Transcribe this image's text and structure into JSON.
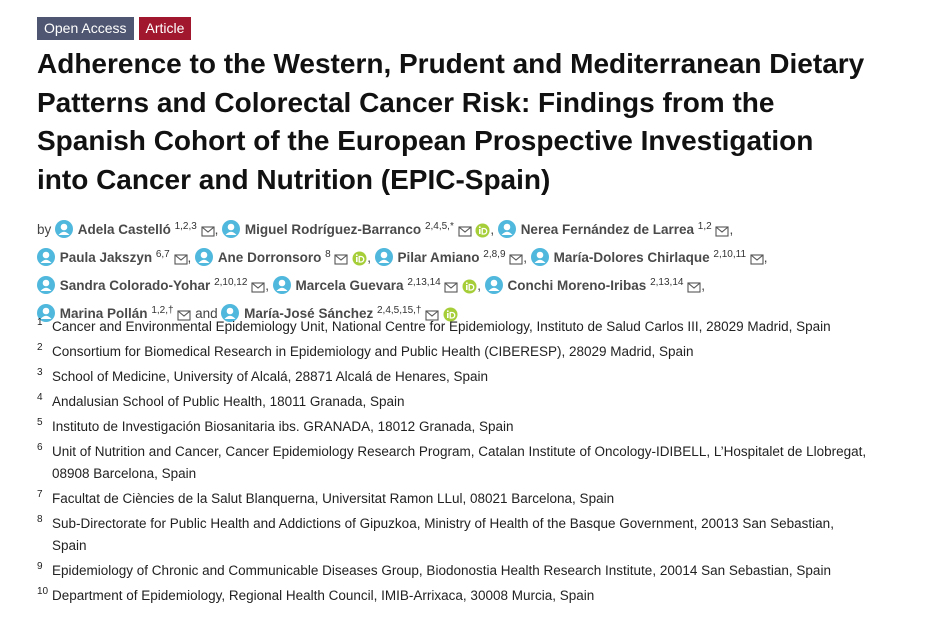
{
  "header": {
    "badges": [
      "Open Access",
      "Article"
    ],
    "title": "Adherence to the Western, Prudent and Mediterranean Dietary Patterns and Colorectal Cancer Risk: Findings from the Spanish Cohort of the European Prospective Investigation into Cancer and Nutrition (EPIC-Spain)"
  },
  "authors_line": {
    "prefix": "by",
    "separator": ",",
    "conjunction": "and",
    "authors": [
      {
        "name": "Adela Castelló",
        "affiliations": "1,2,3",
        "orcid": false
      },
      {
        "name": "Miguel Rodríguez-Barranco",
        "affiliations": "2,4,5,*",
        "orcid": true
      },
      {
        "name": "Nerea Fernández de Larrea",
        "affiliations": "1,2",
        "orcid": false
      },
      {
        "name": "Paula Jakszyn",
        "affiliations": "6,7",
        "orcid": false
      },
      {
        "name": "Ane Dorronsoro",
        "affiliations": "8",
        "orcid": true
      },
      {
        "name": "Pilar Amiano",
        "affiliations": "2,8,9",
        "orcid": false
      },
      {
        "name": "María-Dolores Chirlaque",
        "affiliations": "2,10,11",
        "orcid": false
      },
      {
        "name": "Sandra Colorado-Yohar",
        "affiliations": "2,10,12",
        "orcid": false
      },
      {
        "name": "Marcela Guevara",
        "affiliations": "2,13,14",
        "orcid": true
      },
      {
        "name": "Conchi Moreno-Iribas",
        "affiliations": "2,13,14",
        "orcid": false
      },
      {
        "name": "Marina Pollán",
        "affiliations": "1,2,†",
        "orcid": false
      },
      {
        "name": "María-José Sánchez",
        "affiliations": "2,4,5,15,†",
        "orcid": true
      }
    ]
  },
  "affiliations": [
    {
      "number": "1",
      "text": "Cancer and Environmental Epidemiology Unit, National Centre for Epidemiology, Instituto de Salud Carlos III, 28029 Madrid, Spain"
    },
    {
      "number": "2",
      "text": "Consortium for Biomedical Research in Epidemiology and Public Health (CIBERESP), 28029 Madrid, Spain"
    },
    {
      "number": "3",
      "text": "School of Medicine, University of Alcalá, 28871 Alcalá de Henares, Spain"
    },
    {
      "number": "4",
      "text": "Andalusian School of Public Health, 18011 Granada, Spain"
    },
    {
      "number": "5",
      "text": "Instituto de Investigación Biosanitaria ibs. GRANADA, 18012 Granada, Spain"
    },
    {
      "number": "6",
      "text": "Unit of Nutrition and Cancer, Cancer Epidemiology Research Program, Catalan Institute of Oncology-IDIBELL, L’Hospitalet de Llobregat, 08908 Barcelona, Spain"
    },
    {
      "number": "7",
      "text": "Facultat de Ciències de la Salut Blanquerna, Universitat Ramon LLul, 08021 Barcelona, Spain"
    },
    {
      "number": "8",
      "text": "Sub-Directorate for Public Health and Addictions of Gipuzkoa, Ministry of Health of the Basque Government, 20013 San Sebastian, Spain"
    },
    {
      "number": "9",
      "text": "Epidemiology of Chronic and Communicable Diseases Group, Biodonostia Health Research Institute, 20014 San Sebastian, Spain"
    },
    {
      "number": "10",
      "text": "Department of Epidemiology, Regional Health Council, IMIB-Arrixaca, 30008 Murcia, Spain"
    }
  ]
}
